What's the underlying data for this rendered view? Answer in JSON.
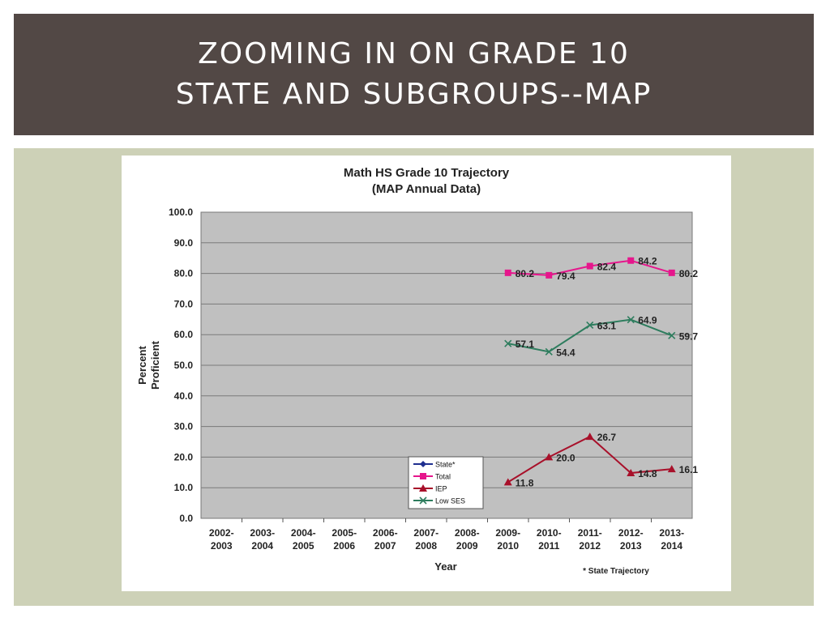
{
  "slide": {
    "title_lines": [
      "ZOOMING IN ON GRADE 10",
      "STATE AND SUBGROUPS--MAP"
    ]
  },
  "colors": {
    "title_bar": "#524845",
    "panel": "#cdd1b7",
    "plot_bg": "#c0c0c0",
    "total": "#e6168c",
    "iep": "#a8102a",
    "low_ses": "#2e7d5e",
    "state": "#1f2f8f"
  },
  "chart_data": {
    "type": "line",
    "title": "Math HS Grade 10 Trajectory",
    "subtitle": "(MAP Annual Data)",
    "xlabel": "Year",
    "ylabel": "Percent Proficient",
    "ylim": [
      0,
      100
    ],
    "y_ticks": [
      "0.0",
      "10.0",
      "20.0",
      "30.0",
      "40.0",
      "50.0",
      "60.0",
      "70.0",
      "80.0",
      "90.0",
      "100.0"
    ],
    "categories": [
      [
        "2002-",
        "2003"
      ],
      [
        "2003-",
        "2004"
      ],
      [
        "2004-",
        "2005"
      ],
      [
        "2005-",
        "2006"
      ],
      [
        "2006-",
        "2007"
      ],
      [
        "2007-",
        "2008"
      ],
      [
        "2008-",
        "2009"
      ],
      [
        "2009-",
        "2010"
      ],
      [
        "2010-",
        "2011"
      ],
      [
        "2011-",
        "2012"
      ],
      [
        "2012-",
        "2013"
      ],
      [
        "2013-",
        "2014"
      ]
    ],
    "grid": true,
    "legend_position": "bottom-center",
    "footnote": "* State Trajectory",
    "series": [
      {
        "name": "State*",
        "marker": "diamond",
        "color": "#1f2f8f",
        "values": [
          null,
          null,
          null,
          null,
          null,
          null,
          null,
          null,
          null,
          null,
          null,
          null
        ],
        "labels": []
      },
      {
        "name": "Total",
        "marker": "square",
        "color": "#e6168c",
        "values": [
          null,
          null,
          null,
          null,
          null,
          null,
          null,
          80.2,
          79.4,
          82.4,
          84.2,
          80.2
        ],
        "labels": [
          null,
          null,
          null,
          null,
          null,
          null,
          null,
          "80.2",
          "79.4",
          "82.4",
          "84.2",
          "80.2"
        ]
      },
      {
        "name": "IEP",
        "marker": "triangle",
        "color": "#a8102a",
        "values": [
          null,
          null,
          null,
          null,
          null,
          null,
          null,
          11.8,
          20.0,
          26.7,
          14.8,
          16.1
        ],
        "labels": [
          null,
          null,
          null,
          null,
          null,
          null,
          null,
          "11.8",
          "20.0",
          "26.7",
          "14.8",
          "16.1"
        ]
      },
      {
        "name": "Low SES",
        "marker": "x",
        "color": "#2e7d5e",
        "values": [
          null,
          null,
          null,
          null,
          null,
          null,
          null,
          57.1,
          54.4,
          63.1,
          64.9,
          59.7
        ],
        "labels": [
          null,
          null,
          null,
          null,
          null,
          null,
          null,
          "57.1",
          "54.4",
          "63.1",
          "64.9",
          "59.7"
        ]
      }
    ]
  }
}
